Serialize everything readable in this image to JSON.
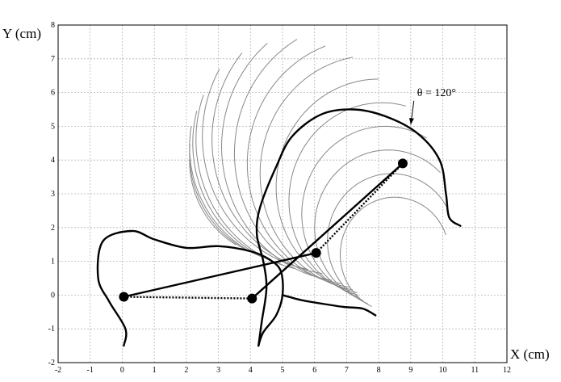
{
  "chart_data": {
    "type": "line",
    "xlabel": "X (cm)",
    "ylabel": "Y (cm)",
    "xlim": [
      -2,
      12
    ],
    "ylim": [
      -2,
      8
    ],
    "xticks": [
      -2,
      -1,
      0,
      1,
      2,
      3,
      4,
      5,
      6,
      7,
      8,
      9,
      10,
      11,
      12
    ],
    "yticks": [
      -2,
      -1,
      0,
      1,
      2,
      3,
      4,
      5,
      6,
      7,
      8
    ],
    "grid": true,
    "annotation": {
      "text": "θ = 120°",
      "arrow_tip": [
        9.0,
        5.05
      ],
      "text_at": [
        9.2,
        5.9
      ]
    },
    "family_arcs": {
      "color": "#888888",
      "description_count": 17,
      "arcs": [
        {
          "center": [
            5.0,
            4.0
          ],
          "radius": 2.9,
          "start_deg": 180,
          "end_deg": 240
        },
        {
          "center": [
            5.3,
            4.2
          ],
          "radius": 3.2,
          "start_deg": 175,
          "end_deg": 245
        },
        {
          "center": [
            5.6,
            4.4
          ],
          "radius": 3.5,
          "start_deg": 170,
          "end_deg": 250
        },
        {
          "center": [
            5.9,
            4.5
          ],
          "radius": 3.7,
          "start_deg": 165,
          "end_deg": 255
        },
        {
          "center": [
            6.2,
            4.6
          ],
          "radius": 3.9,
          "start_deg": 160,
          "end_deg": 258
        },
        {
          "center": [
            6.5,
            4.7
          ],
          "radius": 4.0,
          "start_deg": 150,
          "end_deg": 260
        },
        {
          "center": [
            6.8,
            4.6
          ],
          "radius": 4.0,
          "start_deg": 140,
          "end_deg": 262
        },
        {
          "center": [
            7.1,
            4.4
          ],
          "radius": 4.0,
          "start_deg": 130,
          "end_deg": 262
        },
        {
          "center": [
            7.4,
            4.2
          ],
          "radius": 3.9,
          "start_deg": 120,
          "end_deg": 262
        },
        {
          "center": [
            7.6,
            3.9
          ],
          "radius": 3.7,
          "start_deg": 110,
          "end_deg": 262
        },
        {
          "center": [
            7.8,
            3.6
          ],
          "radius": 3.5,
          "start_deg": 100,
          "end_deg": 260
        },
        {
          "center": [
            8.0,
            3.2
          ],
          "radius": 3.2,
          "start_deg": 90,
          "end_deg": 258
        },
        {
          "center": [
            8.1,
            2.8
          ],
          "radius": 2.9,
          "start_deg": 75,
          "end_deg": 255
        },
        {
          "center": [
            8.2,
            2.4
          ],
          "radius": 2.6,
          "start_deg": 60,
          "end_deg": 252
        },
        {
          "center": [
            8.3,
            2.0
          ],
          "radius": 2.3,
          "start_deg": 45,
          "end_deg": 250
        },
        {
          "center": [
            8.4,
            1.6
          ],
          "radius": 2.0,
          "start_deg": 30,
          "end_deg": 248
        },
        {
          "center": [
            8.5,
            1.2
          ],
          "radius": 1.7,
          "start_deg": 20,
          "end_deg": 245
        }
      ]
    },
    "boundaries": [
      {
        "name": "",
        "color": "#000000",
        "points": [
          [
            0.05,
            -1.5
          ],
          [
            0.1,
            -1.0
          ],
          [
            -0.4,
            -0.2
          ],
          [
            -0.75,
            0.5
          ],
          [
            -0.6,
            1.6
          ],
          [
            0.3,
            1.9
          ],
          [
            1.0,
            1.65
          ],
          [
            2.0,
            1.4
          ],
          [
            3.0,
            1.45
          ],
          [
            4.0,
            1.3
          ],
          [
            4.6,
            1.05
          ],
          [
            4.95,
            0.7
          ],
          [
            5.0,
            0.0
          ],
          [
            4.8,
            -0.6
          ],
          [
            4.4,
            -1.1
          ],
          [
            4.25,
            -1.5
          ]
        ]
      },
      {
        "name": "",
        "color": "#000000",
        "points": [
          [
            4.25,
            -1.5
          ],
          [
            4.35,
            -0.8
          ],
          [
            4.5,
            0.2
          ],
          [
            4.4,
            1.0
          ],
          [
            4.2,
            1.8
          ],
          [
            4.3,
            2.6
          ],
          [
            4.8,
            3.8
          ],
          [
            5.3,
            4.7
          ],
          [
            6.2,
            5.35
          ],
          [
            7.2,
            5.5
          ],
          [
            8.2,
            5.3
          ],
          [
            9.2,
            4.8
          ],
          [
            9.9,
            4.0
          ],
          [
            10.1,
            3.0
          ],
          [
            10.2,
            2.3
          ],
          [
            10.55,
            2.05
          ]
        ]
      },
      {
        "name": "",
        "color": "#000000",
        "points": [
          [
            5.0,
            0.0
          ],
          [
            5.6,
            -0.15
          ],
          [
            6.2,
            -0.25
          ],
          [
            6.9,
            -0.35
          ],
          [
            7.5,
            -0.4
          ],
          [
            7.9,
            -0.6
          ]
        ]
      }
    ],
    "mechanism": {
      "joints": [
        [
          0.05,
          -0.05
        ],
        [
          4.05,
          -0.1
        ],
        [
          6.05,
          1.25
        ],
        [
          8.75,
          3.9
        ]
      ],
      "solid_links": [
        [
          [
            0.05,
            -0.05
          ],
          [
            6.05,
            1.25
          ]
        ],
        [
          [
            4.05,
            -0.1
          ],
          [
            8.75,
            3.9
          ]
        ]
      ],
      "dotted_links": [
        [
          [
            0.05,
            -0.05
          ],
          [
            4.05,
            -0.1
          ]
        ],
        [
          [
            6.05,
            1.25
          ],
          [
            8.75,
            3.9
          ]
        ]
      ]
    }
  }
}
